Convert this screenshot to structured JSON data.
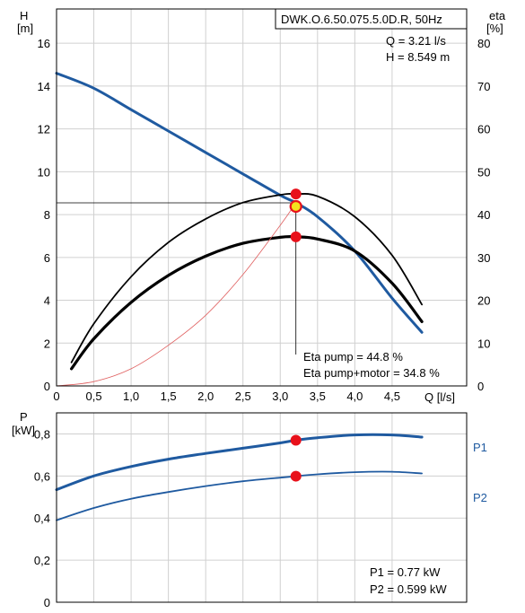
{
  "chart_data": [
    {
      "type": "line",
      "title": "DWK.O.6.50.075.5.0D.R, 50Hz",
      "xlabel": "Q [l/s]",
      "ylabel_left_name": "H",
      "ylabel_left_unit": "[m]",
      "ylabel_right_name": "eta",
      "ylabel_right_unit": "[%]",
      "xlim": [
        0,
        5.5
      ],
      "ylim_left": [
        0,
        17.6
      ],
      "ylim_right": [
        0,
        88
      ],
      "x_ticks": [
        "0",
        "0,5",
        "1,0",
        "1,5",
        "2,0",
        "2,5",
        "3,0",
        "3,5",
        "4,0",
        "4,5"
      ],
      "y_left_ticks": [
        "0",
        "2",
        "4",
        "6",
        "8",
        "10",
        "12",
        "14",
        "16"
      ],
      "y_right_ticks": [
        "0",
        "10",
        "20",
        "30",
        "40",
        "50",
        "60",
        "70",
        "80"
      ],
      "grid": true,
      "series": [
        {
          "axis": "left",
          "color": "#1f5aa0",
          "x": [
            0,
            0.5,
            1.0,
            1.5,
            2.0,
            2.5,
            3.0,
            3.21,
            3.5,
            4.0,
            4.5,
            4.9
          ],
          "values": [
            14.6,
            13.9,
            12.9,
            11.9,
            10.9,
            9.9,
            8.9,
            8.549,
            7.9,
            6.3,
            4.1,
            2.5
          ]
        },
        {
          "axis": "right",
          "color": "#000000",
          "x": [
            0.2,
            0.5,
            1.0,
            1.5,
            2.0,
            2.5,
            3.0,
            3.21,
            3.5,
            4.0,
            4.5,
            4.9
          ],
          "values": [
            5.5,
            14.5,
            25.5,
            33.5,
            39.0,
            42.8,
            44.6,
            44.8,
            44.3,
            39.5,
            30.5,
            19.0
          ]
        },
        {
          "axis": "right",
          "color": "#000000",
          "x": [
            0.2,
            0.5,
            1.0,
            1.5,
            2.0,
            2.5,
            3.0,
            3.21,
            3.5,
            4.0,
            4.5,
            4.9
          ],
          "values": [
            4.0,
            11.0,
            19.5,
            25.8,
            30.3,
            33.3,
            34.7,
            34.8,
            34.3,
            31.5,
            24.0,
            15.0
          ]
        },
        {
          "axis": "left",
          "color": "#e06060",
          "x": [
            0,
            0.5,
            1.0,
            1.5,
            2.0,
            2.5,
            3.0,
            3.21
          ],
          "values": [
            0,
            0.2,
            0.8,
            1.9,
            3.3,
            5.2,
            7.5,
            8.549
          ]
        }
      ],
      "duty_point": {
        "q": 3.21,
        "h": 8.549,
        "eta_pump": 44.8,
        "eta_pump_motor": 34.8
      },
      "annotations": {
        "q_text": "Q = 3.21 l/s",
        "h_text": "H = 8.549 m",
        "eta_pump_text": "Eta pump = 44.8 %",
        "eta_pump_motor_text": "Eta pump+motor = 34.8 %"
      }
    },
    {
      "type": "line",
      "ylabel_name": "P",
      "ylabel_unit": "[kW]",
      "xlim": [
        0,
        5.5
      ],
      "ylim": [
        0,
        0.9
      ],
      "y_ticks": [
        "0",
        "0,2",
        "0,4",
        "0,6",
        "0,8"
      ],
      "grid": true,
      "series": [
        {
          "name": "P1",
          "color": "#1f5aa0",
          "x": [
            0,
            0.5,
            1.0,
            1.5,
            2.0,
            2.5,
            3.0,
            3.21,
            3.5,
            4.0,
            4.5,
            4.9
          ],
          "values": [
            0.535,
            0.6,
            0.645,
            0.68,
            0.707,
            0.732,
            0.757,
            0.77,
            0.782,
            0.795,
            0.795,
            0.785
          ]
        },
        {
          "name": "P2",
          "color": "#1f5aa0",
          "x": [
            0,
            0.5,
            1.0,
            1.5,
            2.0,
            2.5,
            3.0,
            3.21,
            3.5,
            4.0,
            4.5,
            4.9
          ],
          "values": [
            0.39,
            0.448,
            0.492,
            0.524,
            0.552,
            0.575,
            0.592,
            0.599,
            0.608,
            0.618,
            0.62,
            0.612
          ]
        }
      ],
      "duty_point": {
        "q": 3.21,
        "p1": 0.77,
        "p2": 0.599
      },
      "annotations": {
        "p1_text": "P1 = 0.77 kW",
        "p2_text": "P2 = 0.599 kW"
      }
    }
  ]
}
